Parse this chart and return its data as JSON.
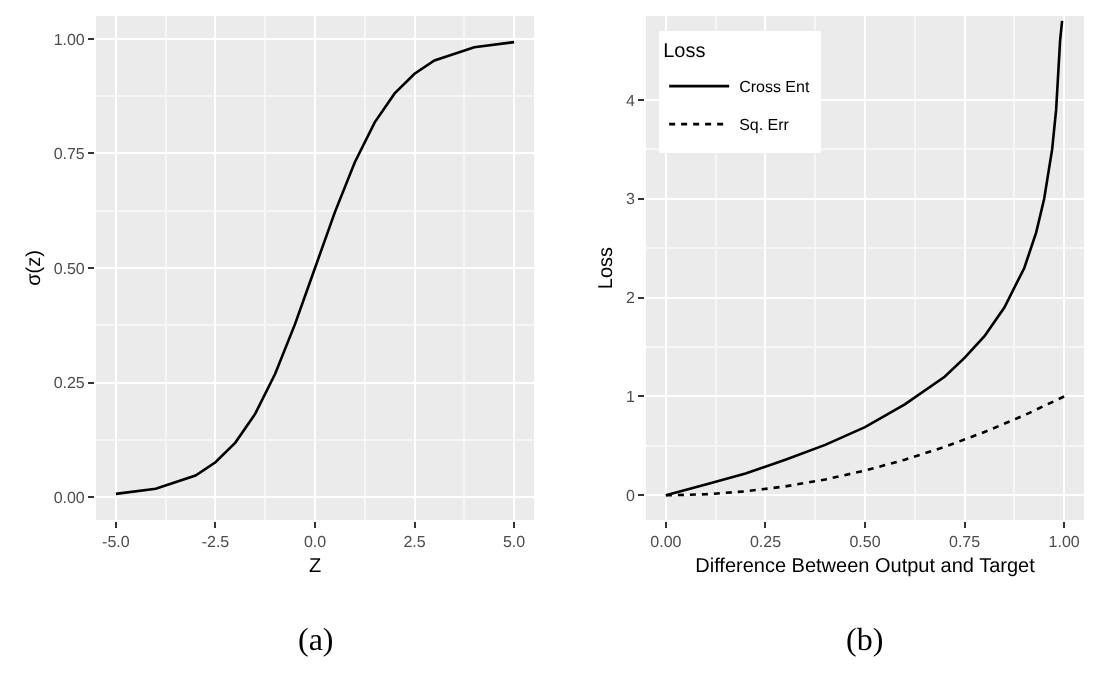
{
  "chart_data": [
    {
      "type": "line",
      "xlabel": "Z",
      "ylabel": "σ(z)",
      "annotations": [
        "(a)"
      ],
      "series": [
        {
          "color": "#000000",
          "line_style": "solid",
          "x": [
            -5,
            -4,
            -3,
            -2.5,
            -2,
            -1.5,
            -1,
            -0.5,
            0,
            0.5,
            1,
            1.5,
            2,
            2.5,
            3,
            4,
            5
          ],
          "values": [
            0.007,
            0.018,
            0.047,
            0.076,
            0.119,
            0.182,
            0.269,
            0.378,
            0.5,
            0.622,
            0.731,
            0.818,
            0.881,
            0.924,
            0.953,
            0.982,
            0.993
          ]
        }
      ],
      "xlim": [
        -5.5,
        5.5
      ],
      "ylim": [
        -0.05,
        1.05
      ],
      "xticks": [
        {
          "value": -5,
          "label": "-5.0"
        },
        {
          "value": -2.5,
          "label": "-2.5"
        },
        {
          "value": 0,
          "label": "0.0"
        },
        {
          "value": 2.5,
          "label": "2.5"
        },
        {
          "value": 5,
          "label": "5.0"
        }
      ],
      "yticks": [
        {
          "value": 0,
          "label": "0.00"
        },
        {
          "value": 0.25,
          "label": "0.25"
        },
        {
          "value": 0.5,
          "label": "0.50"
        },
        {
          "value": 0.75,
          "label": "0.75"
        },
        {
          "value": 1,
          "label": "1.00"
        }
      ],
      "grid": true
    },
    {
      "type": "line",
      "xlabel": "Difference Between Output and Target",
      "ylabel": "Loss",
      "legend_title": "Loss",
      "legend": "top left",
      "annotations": [
        "(b)"
      ],
      "series": [
        {
          "name": "Cross Ent",
          "color": "#000000",
          "line_style": "solid",
          "x": [
            0,
            0.1,
            0.2,
            0.3,
            0.4,
            0.5,
            0.6,
            0.7,
            0.75,
            0.8,
            0.85,
            0.9,
            0.93,
            0.95,
            0.97,
            0.98,
            0.99,
            0.995
          ],
          "values": [
            0,
            0.11,
            0.22,
            0.36,
            0.51,
            0.69,
            0.92,
            1.2,
            1.39,
            1.61,
            1.9,
            2.3,
            2.66,
            3.0,
            3.5,
            3.9,
            4.6,
            4.8
          ]
        },
        {
          "name": "Sq. Err",
          "color": "#000000",
          "line_style": "dotted",
          "x": [
            0,
            0.1,
            0.2,
            0.3,
            0.4,
            0.5,
            0.6,
            0.7,
            0.8,
            0.9,
            1
          ],
          "values": [
            0,
            0.01,
            0.04,
            0.09,
            0.16,
            0.25,
            0.36,
            0.49,
            0.64,
            0.81,
            1
          ]
        }
      ],
      "xlim": [
        -0.05,
        1.05
      ],
      "ylim": [
        -0.25,
        4.85
      ],
      "xticks": [
        {
          "value": 0,
          "label": "0.00"
        },
        {
          "value": 0.25,
          "label": "0.25"
        },
        {
          "value": 0.5,
          "label": "0.50"
        },
        {
          "value": 0.75,
          "label": "0.75"
        },
        {
          "value": 1,
          "label": "1.00"
        }
      ],
      "yticks": [
        0,
        1,
        2,
        3,
        4
      ],
      "grid": true
    }
  ]
}
